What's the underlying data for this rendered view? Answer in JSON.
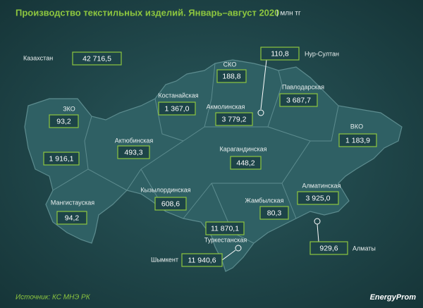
{
  "header": {
    "title": "Производство текстильных изделий. Январь–август 2020",
    "unit": "| млн тг"
  },
  "regions": [
    {
      "name": "Казахстан",
      "value": "42 716,5"
    },
    {
      "name": "Нур-Султан",
      "value": "110,8"
    },
    {
      "name": "СКО",
      "value": "188,8"
    },
    {
      "name": "Павлодарская",
      "value": "3 687,7"
    },
    {
      "name": "Костанайская",
      "value": "1 367,0"
    },
    {
      "name": "Акмолинская",
      "value": "3 779,2"
    },
    {
      "name": "ЗКО",
      "value": "93,2"
    },
    {
      "name": "ВКО",
      "value": "1 183,9"
    },
    {
      "name": "Актюбинская",
      "value": "493,3"
    },
    {
      "name": "Карагандинская",
      "value": "448,2"
    },
    {
      "value": "1 916,1"
    },
    {
      "name": "Кызылординская",
      "value": "608,6"
    },
    {
      "name": "Алматинская",
      "value": "3 925,0"
    },
    {
      "name": "Мангистауская",
      "value": "94,2"
    },
    {
      "name": "Жамбылская",
      "value": "80,3"
    },
    {
      "name": "Туркестанская",
      "value": "11 870,1"
    },
    {
      "name": "Алматы",
      "value": "929,6"
    },
    {
      "name": "Шымкент",
      "value": "11 940,6"
    }
  ],
  "footer": {
    "source": "Источник: КС МНЭ РК",
    "logo": "EnergyProm"
  }
}
